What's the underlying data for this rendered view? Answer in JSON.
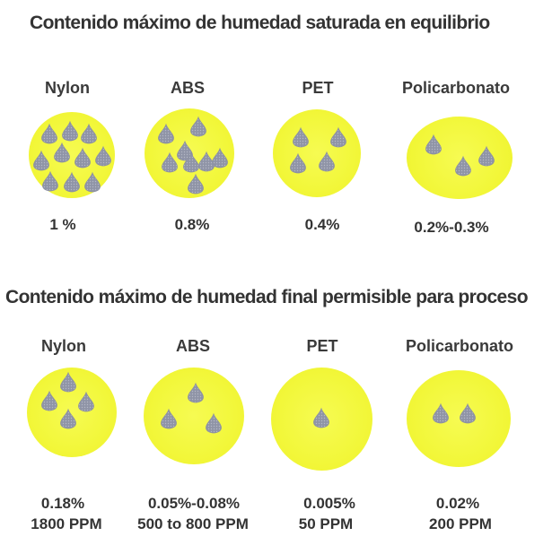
{
  "section1": {
    "title": "Contenido máximo de humedad saturada en equilibrio",
    "materials": [
      {
        "name": "Nylon",
        "value": "1 %",
        "drops": 10
      },
      {
        "name": "ABS",
        "value": "0.8%",
        "drops": 8
      },
      {
        "name": "PET",
        "value": "0.4%",
        "drops": 4
      },
      {
        "name": "Policarbonato",
        "value": "0.2%-0.3%",
        "drops": 3
      }
    ]
  },
  "section2": {
    "title": "Contenido máximo de humedad final permisible para proceso",
    "materials": [
      {
        "name": "Nylon",
        "value": "0.18%",
        "ppm": "1800 PPM",
        "drops": 4
      },
      {
        "name": "ABS",
        "value": "0.05%-0.08%",
        "ppm": "500 to 800 PPM",
        "drops": 3
      },
      {
        "name": "PET",
        "value": "0.005%",
        "ppm": "50 PPM",
        "drops": 1
      },
      {
        "name": "Policarbonato",
        "value": "0.02%",
        "ppm": "200 PPM",
        "drops": 2
      }
    ]
  },
  "colors": {
    "circle": "#f2f73a",
    "drop": "#8c90a0",
    "text": "#333333"
  },
  "icons": {
    "drop": "water-drop-icon"
  }
}
